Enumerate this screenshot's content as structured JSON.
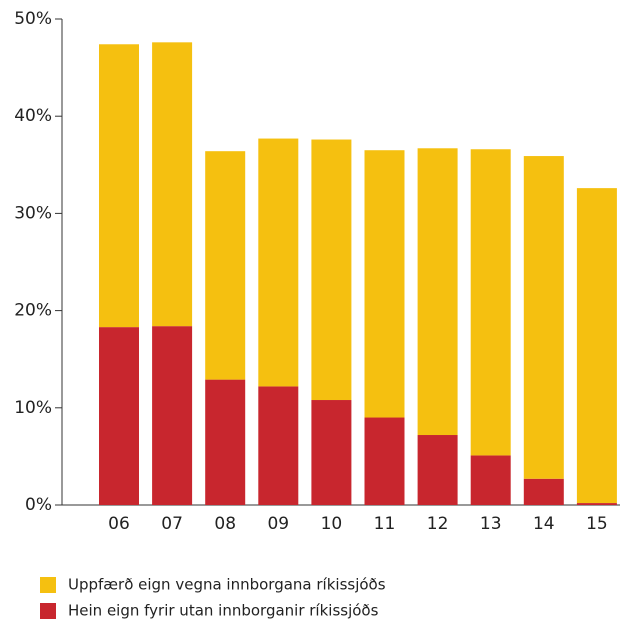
{
  "chart_data": {
    "type": "stacked_bar",
    "categories": [
      "06",
      "07",
      "08",
      "09",
      "10",
      "11",
      "12",
      "13",
      "14",
      "15"
    ],
    "series": [
      {
        "name": "Uppfærð eign vegna innborgana ríkissjóðs",
        "color": "#f5c010",
        "values": [
          29.1,
          29.2,
          23.5,
          25.5,
          26.8,
          27.5,
          29.5,
          31.5,
          33.2,
          32.4
        ]
      },
      {
        "name": "Hein eign fyrir utan innborganir ríkissjóðs",
        "color": "#c8262e",
        "values": [
          18.3,
          18.4,
          12.9,
          12.2,
          10.8,
          9.0,
          7.2,
          5.1,
          2.7,
          0.2
        ]
      }
    ],
    "ylim": [
      0,
      50
    ],
    "yticks": [
      {
        "value": 0,
        "label": "0%"
      },
      {
        "value": 10,
        "label": "10%"
      },
      {
        "value": 20,
        "label": "20%"
      },
      {
        "value": 30,
        "label": "30%"
      },
      {
        "value": 40,
        "label": "40%"
      },
      {
        "value": 50,
        "label": "50%"
      }
    ],
    "legend": "bottom-left"
  }
}
